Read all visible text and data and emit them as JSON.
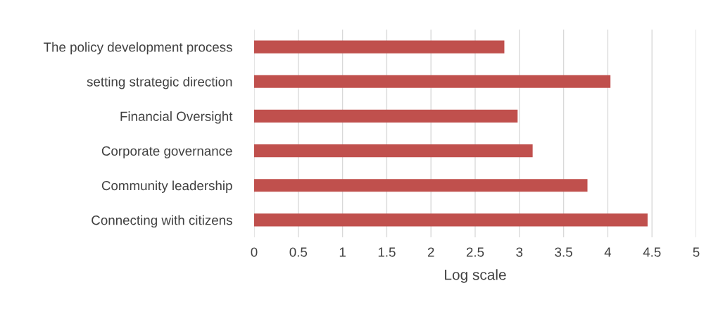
{
  "chart_data": {
    "type": "bar",
    "orientation": "horizontal",
    "xlabel": "Log scale",
    "categories": [
      "The policy development process",
      "setting strategic direction",
      "Financial Oversight",
      "Corporate governance",
      "Community leadership",
      "Connecting with citizens"
    ],
    "values": [
      2.83,
      4.03,
      2.98,
      3.15,
      3.77,
      4.45
    ],
    "color": "#c0504d",
    "xlim": [
      0,
      5
    ],
    "xticks": [
      0,
      0.5,
      1,
      1.5,
      2,
      2.5,
      3,
      3.5,
      4,
      4.5,
      5
    ],
    "grid": "x"
  }
}
